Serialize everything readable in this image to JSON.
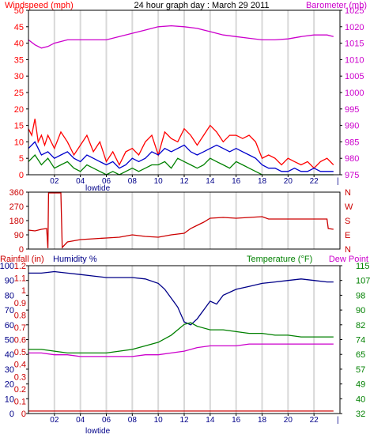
{
  "chart_data": [
    {
      "type": "line",
      "title": "24 hour graph day : March 29 2011",
      "ylabel_left": "Windspeed (mph)",
      "ylabel_right": "Barometer (mb)",
      "ylim_left": [
        0,
        50
      ],
      "ylim_right": [
        975,
        1025
      ],
      "yticks_left": [
        0,
        5,
        10,
        15,
        20,
        25,
        30,
        35,
        40,
        45,
        50
      ],
      "yticks_right": [
        975,
        980,
        985,
        990,
        995,
        1000,
        1005,
        1010,
        1015,
        1020,
        1025
      ],
      "xlim": [
        0,
        24
      ],
      "xticks": [
        "02",
        "04",
        "06",
        "08",
        "10",
        "12",
        "14",
        "16",
        "18",
        "20",
        "22"
      ],
      "annotation": "lowtide",
      "annotation_x": 3.8,
      "grid": "vertical",
      "series": [
        {
          "key": "barometer",
          "axis": "right",
          "color": "#cc00cc",
          "x": [
            0,
            0.5,
            1,
            1.5,
            2,
            3,
            4,
            5,
            6,
            7,
            8,
            9,
            10,
            11,
            12,
            13,
            14,
            15,
            16,
            17,
            18,
            19,
            20,
            21,
            22,
            23,
            23.5
          ],
          "values": [
            1016,
            1014.5,
            1013.5,
            1014,
            1015,
            1016,
            1016,
            1016,
            1016,
            1017,
            1018,
            1019,
            1020,
            1020.3,
            1020,
            1019.5,
            1018.5,
            1017.5,
            1017,
            1016.5,
            1016,
            1016,
            1016.3,
            1017,
            1017.5,
            1017.5,
            1017
          ]
        },
        {
          "key": "gust",
          "axis": "left",
          "color": "#ff0000",
          "x": [
            0,
            0.25,
            0.5,
            0.75,
            1,
            1.25,
            1.5,
            2,
            2.5,
            3,
            3.5,
            4,
            4.5,
            5,
            5.5,
            6,
            6.5,
            7,
            7.5,
            8,
            8.5,
            9,
            9.5,
            10,
            10.5,
            11,
            11.5,
            12,
            12.5,
            13,
            13.5,
            14,
            14.5,
            15,
            15.5,
            16,
            16.5,
            17,
            17.5,
            18,
            18.5,
            19,
            19.5,
            20,
            20.5,
            21,
            21.5,
            22,
            22.5,
            23,
            23.5
          ],
          "values": [
            14,
            12,
            17,
            10,
            12,
            9,
            12,
            8,
            13,
            10,
            6,
            9,
            12,
            7,
            10,
            4,
            7,
            3,
            7,
            8,
            6,
            10,
            12,
            6,
            13,
            11,
            10,
            14,
            12,
            9,
            12,
            15,
            13,
            10,
            12,
            12,
            11,
            12,
            10,
            5,
            6,
            5,
            3,
            5,
            4,
            3,
            4,
            2,
            4,
            5,
            3
          ]
        },
        {
          "key": "windspeed",
          "axis": "left",
          "color": "#0000cc",
          "x": [
            0,
            0.5,
            1,
            1.5,
            2,
            2.5,
            3,
            3.5,
            4,
            4.5,
            5,
            5.5,
            6,
            6.5,
            7,
            7.5,
            8,
            8.5,
            9,
            9.5,
            10,
            10.5,
            11,
            11.5,
            12,
            12.5,
            13,
            13.5,
            14,
            14.5,
            15,
            15.5,
            16,
            16.5,
            17,
            17.5,
            18,
            18.5,
            19,
            19.5,
            20,
            20.5,
            21,
            21.5,
            22,
            22.5,
            23,
            23.5
          ],
          "values": [
            8,
            10,
            6,
            7,
            5,
            6,
            7,
            5,
            4,
            6,
            5,
            4,
            3,
            4,
            2,
            3,
            5,
            4,
            5,
            7,
            6,
            8,
            7,
            8,
            9,
            7,
            6,
            7,
            8,
            9,
            8,
            7,
            8,
            7,
            6,
            5,
            3,
            2,
            2,
            1,
            1,
            2,
            1,
            1,
            2,
            1,
            1,
            1
          ]
        },
        {
          "key": "windspeed_min",
          "axis": "left",
          "color": "#008000",
          "x": [
            0,
            0.5,
            1,
            1.5,
            2,
            2.5,
            3,
            3.5,
            4,
            4.5,
            5,
            5.5,
            6,
            6.5,
            7,
            7.5,
            8,
            8.5,
            9,
            9.5,
            10,
            10.5,
            11,
            11.5,
            12,
            12.5,
            13,
            13.5,
            14,
            14.5,
            15,
            15.5,
            16,
            16.5,
            17,
            17.5,
            18,
            18.5,
            19,
            19.5,
            20,
            20.5,
            21,
            21.5,
            22,
            22.5,
            23,
            23.5
          ],
          "values": [
            4,
            6,
            3,
            5,
            2,
            3,
            4,
            2,
            1,
            3,
            2,
            1,
            0,
            1,
            0,
            1,
            2,
            1,
            2,
            3,
            3,
            4,
            2,
            5,
            4,
            3,
            2,
            3,
            5,
            4,
            3,
            2,
            4,
            3,
            2,
            1,
            0,
            0,
            0,
            0,
            0,
            0,
            0,
            0,
            0,
            0,
            0,
            0
          ]
        }
      ]
    },
    {
      "type": "line",
      "title": "",
      "ylabel_left": "",
      "ylim": [
        0,
        360
      ],
      "yticks_left": [
        0,
        90,
        180,
        270,
        360
      ],
      "yticks_right": [
        "N",
        "W",
        "S",
        "E",
        "N"
      ],
      "xlim": [
        0,
        24
      ],
      "grid": "vertical",
      "series": [
        {
          "key": "direction",
          "color": "#cc0000",
          "x": [
            0,
            0.5,
            1,
            1.4,
            1.5,
            1.55,
            2.5,
            2.6,
            3,
            4,
            5,
            6,
            7,
            8,
            9,
            10,
            11,
            12,
            12.5,
            13,
            13.5,
            14,
            15,
            16,
            17,
            18,
            18.5,
            19,
            20,
            21,
            22,
            23,
            23.1,
            23.5
          ],
          "values": [
            120,
            115,
            125,
            130,
            5,
            355,
            355,
            10,
            45,
            60,
            65,
            70,
            75,
            90,
            80,
            75,
            90,
            100,
            130,
            150,
            170,
            195,
            200,
            195,
            200,
            205,
            190,
            190,
            190,
            190,
            190,
            190,
            130,
            125
          ]
        }
      ]
    },
    {
      "type": "line",
      "title": "",
      "labels": {
        "rainfall": "Rainfall (in)",
        "humidity": "Humidity %",
        "temperature": "Temperature (°F)",
        "dewpoint": "Dew Point"
      },
      "ylim_humidity": [
        0,
        100
      ],
      "ylim_rainfall": [
        0,
        1.2
      ],
      "ylim_temp": [
        32,
        115
      ],
      "yticks_humidity": [
        0,
        10,
        20,
        30,
        40,
        50,
        60,
        70,
        80,
        90,
        100
      ],
      "yticks_rainfall": [
        "0",
        "0.1",
        "0.2",
        "0.3",
        "0.4",
        "0.5",
        "0.6",
        "0.7",
        "0.8",
        "0.9",
        "1",
        "1.1",
        "1.2"
      ],
      "yticks_temp": [
        32,
        40,
        49,
        57,
        65,
        74,
        82,
        90,
        98,
        107,
        115
      ],
      "xlim": [
        0,
        24
      ],
      "xticks": [
        "02",
        "04",
        "06",
        "08",
        "10",
        "12",
        "14",
        "16",
        "18",
        "20",
        "22"
      ],
      "annotation": "lowtide",
      "annotation_x": 3.8,
      "grid": "vertical",
      "series": [
        {
          "key": "humidity",
          "axis": "humidity",
          "color": "#000088",
          "x": [
            0,
            1,
            2,
            3,
            4,
            5,
            6,
            7,
            8,
            9,
            10,
            10.5,
            11,
            11.5,
            12,
            12.5,
            13,
            13.5,
            14,
            14.5,
            15,
            16,
            17,
            18,
            19,
            20,
            21,
            22,
            23,
            23.5
          ],
          "values": [
            95,
            95,
            96,
            95,
            94,
            93,
            92,
            92,
            92,
            91,
            88,
            84,
            78,
            72,
            62,
            60,
            64,
            70,
            76,
            74,
            80,
            84,
            86,
            88,
            89,
            90,
            91,
            90,
            89,
            89
          ]
        },
        {
          "key": "temperature",
          "axis": "temp",
          "color": "#008000",
          "x": [
            0,
            1,
            2,
            3,
            4,
            5,
            6,
            7,
            8,
            9,
            10,
            10.5,
            11,
            11.5,
            12,
            12.5,
            13,
            14,
            15,
            16,
            17,
            18,
            19,
            20,
            21,
            22,
            23,
            23.5
          ],
          "values": [
            68,
            68,
            67,
            66,
            66,
            66,
            66,
            67,
            68,
            70,
            72,
            74,
            76,
            79,
            82,
            83,
            81,
            79,
            79,
            78,
            77,
            77,
            76,
            76,
            75,
            75,
            75,
            75
          ]
        },
        {
          "key": "dewpoint",
          "axis": "temp",
          "color": "#cc00cc",
          "x": [
            0,
            1,
            2,
            3,
            4,
            5,
            6,
            7,
            8,
            9,
            10,
            11,
            12,
            13,
            14,
            15,
            16,
            17,
            18,
            19,
            20,
            21,
            22,
            23,
            23.5
          ],
          "values": [
            66,
            66,
            65,
            65,
            64,
            64,
            64,
            64,
            64,
            65,
            65,
            66,
            67,
            69,
            70,
            70,
            70,
            71,
            71,
            71,
            71,
            71,
            71,
            71,
            71
          ]
        },
        {
          "key": "rainfall",
          "axis": "rainfall",
          "color": "#cc0000",
          "x": [
            0,
            23.5
          ],
          "values": [
            0.02,
            0.02
          ]
        }
      ]
    }
  ]
}
